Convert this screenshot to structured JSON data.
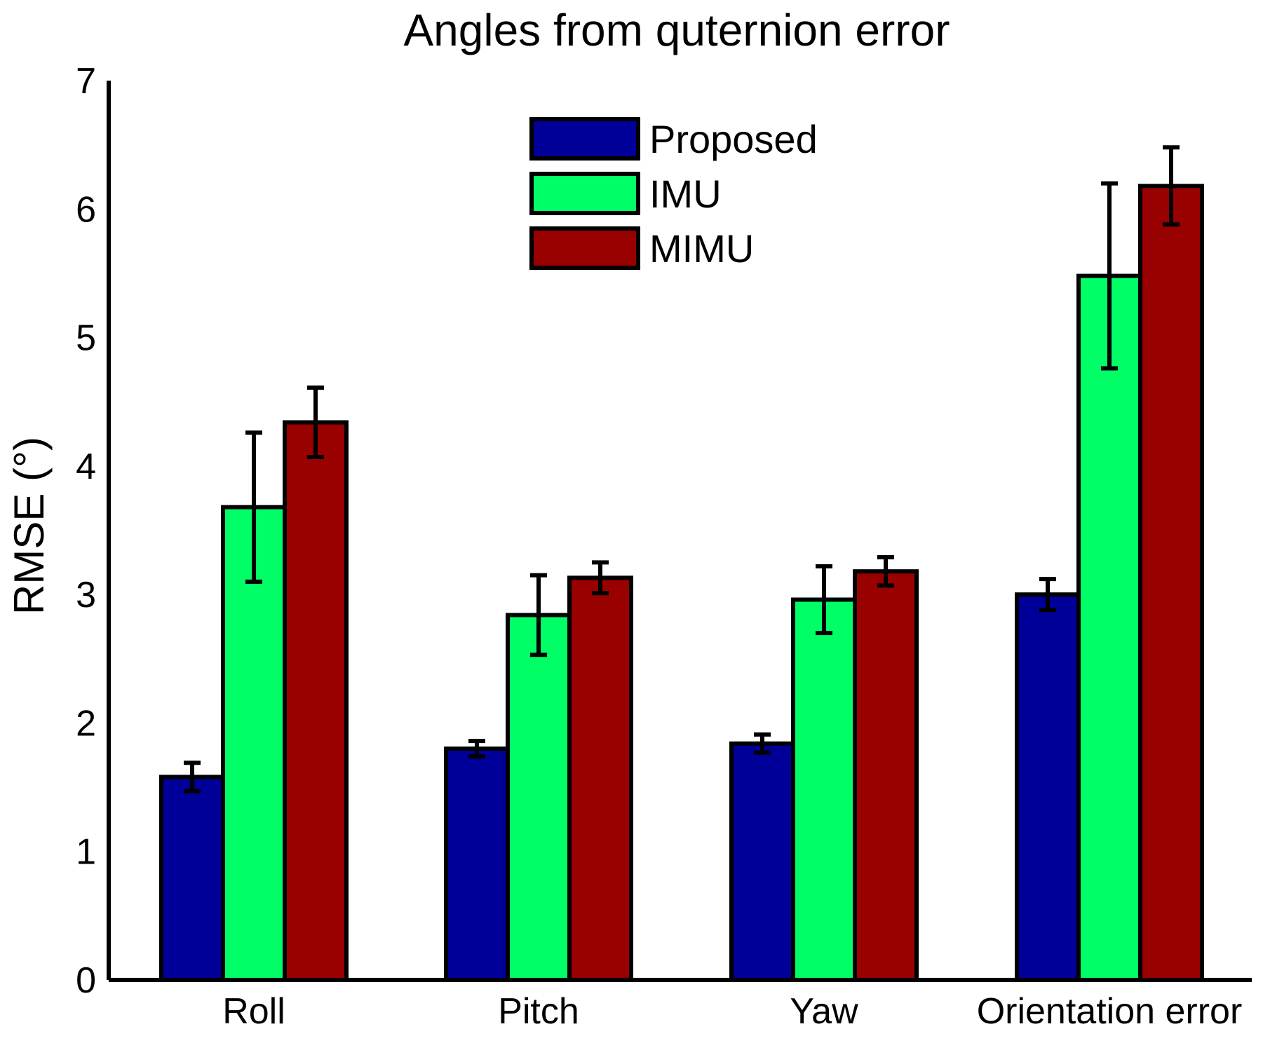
{
  "chart_data": {
    "type": "bar",
    "title": "Angles from quternion error",
    "xlabel": "",
    "ylabel": "RMSE (°)",
    "ylim": [
      0,
      7
    ],
    "yticks": [
      "0",
      "1",
      "2",
      "3",
      "4",
      "5",
      "6",
      "7"
    ],
    "categories": [
      "Roll",
      "Pitch",
      "Yaw",
      "Orientation error"
    ],
    "series": [
      {
        "name": "Proposed",
        "color": "#000099",
        "values": [
          1.58,
          1.8,
          1.84,
          3.0
        ],
        "errors": [
          0.11,
          0.06,
          0.07,
          0.12
        ]
      },
      {
        "name": "IMU",
        "color": "#00ff66",
        "values": [
          3.68,
          2.84,
          2.96,
          5.48
        ],
        "errors": [
          0.58,
          0.31,
          0.26,
          0.72
        ]
      },
      {
        "name": "MIMU",
        "color": "#990000",
        "values": [
          4.34,
          3.13,
          3.18,
          6.18
        ],
        "errors": [
          0.27,
          0.12,
          0.11,
          0.3
        ]
      }
    ],
    "legend_position": "top-center",
    "grid": false
  }
}
